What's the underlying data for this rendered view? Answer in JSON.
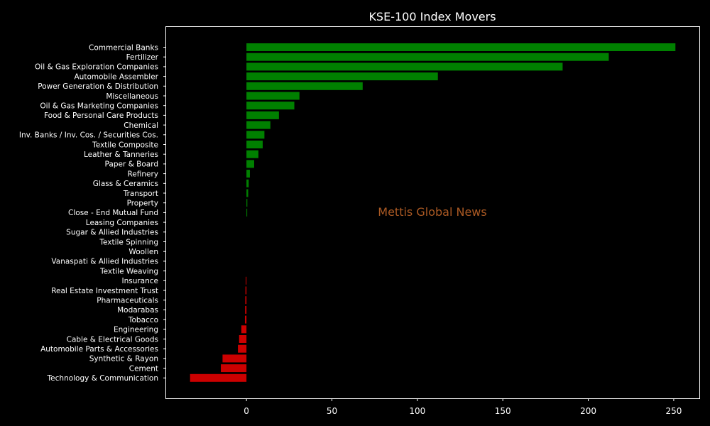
{
  "chart_data": {
    "type": "bar",
    "orientation": "horizontal",
    "title": "KSE-100 Index Movers",
    "xlabel": "",
    "ylabel": "",
    "xlim": [
      -47,
      265
    ],
    "xticks": [
      0,
      50,
      100,
      150,
      200,
      250
    ],
    "grid": false,
    "watermark": "Mettis Global News",
    "colors": {
      "positive": "#008000",
      "negative": "#cc0000",
      "background": "#000000",
      "axes": "#ffffff",
      "watermark": "#c8692a"
    },
    "categories": [
      "Commercial Banks",
      "Fertilizer",
      "Oil & Gas Exploration Companies",
      "Automobile Assembler",
      "Power Generation & Distribution",
      "Miscellaneous",
      "Oil & Gas Marketing Companies",
      "Food & Personal Care Products",
      "Chemical",
      "Inv. Banks / Inv. Cos. / Securities Cos.",
      "Textile Composite",
      "Leather & Tanneries",
      "Paper & Board",
      "Refinery",
      "Glass & Ceramics",
      "Transport",
      "Property",
      "Close - End Mutual Fund",
      "Leasing Companies",
      "Sugar & Allied Industries",
      "Textile Spinning",
      "Woollen",
      "Vanaspati & Allied Industries",
      "Textile Weaving",
      "Insurance",
      "Real Estate Investment Trust",
      "Pharmaceuticals",
      "Modarabas",
      "Tobacco",
      "Engineering",
      "Cable & Electrical Goods",
      "Automobile Parts & Accessories",
      "Synthetic & Rayon",
      "Cement",
      "Technology & Communication"
    ],
    "values": [
      251,
      212,
      185,
      112,
      68,
      31,
      28,
      19,
      14,
      10.5,
      9.5,
      7,
      4.5,
      2,
      1.3,
      1,
      0.5,
      0.3,
      0,
      0,
      0,
      0,
      0,
      0,
      -0.4,
      -0.6,
      -0.7,
      -0.8,
      -0.9,
      -3,
      -4.3,
      -5,
      -14,
      -15,
      -33
    ]
  }
}
